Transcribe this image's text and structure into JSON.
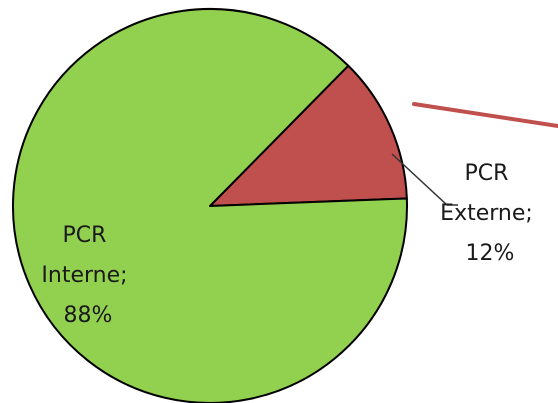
{
  "chart_data": {
    "type": "pie",
    "slices": [
      {
        "name": "PCR Externe",
        "value": 12,
        "label_lines": [
          "PCR",
          "Externe;",
          "12%"
        ],
        "color": "#c0504d"
      },
      {
        "name": "PCR Interne",
        "value": 88,
        "label_lines": [
          "PCR",
          "Interne;",
          "88%"
        ],
        "color": "#92d050"
      }
    ],
    "start_angle_deg": 2.2,
    "direction": "counterclockwise"
  }
}
